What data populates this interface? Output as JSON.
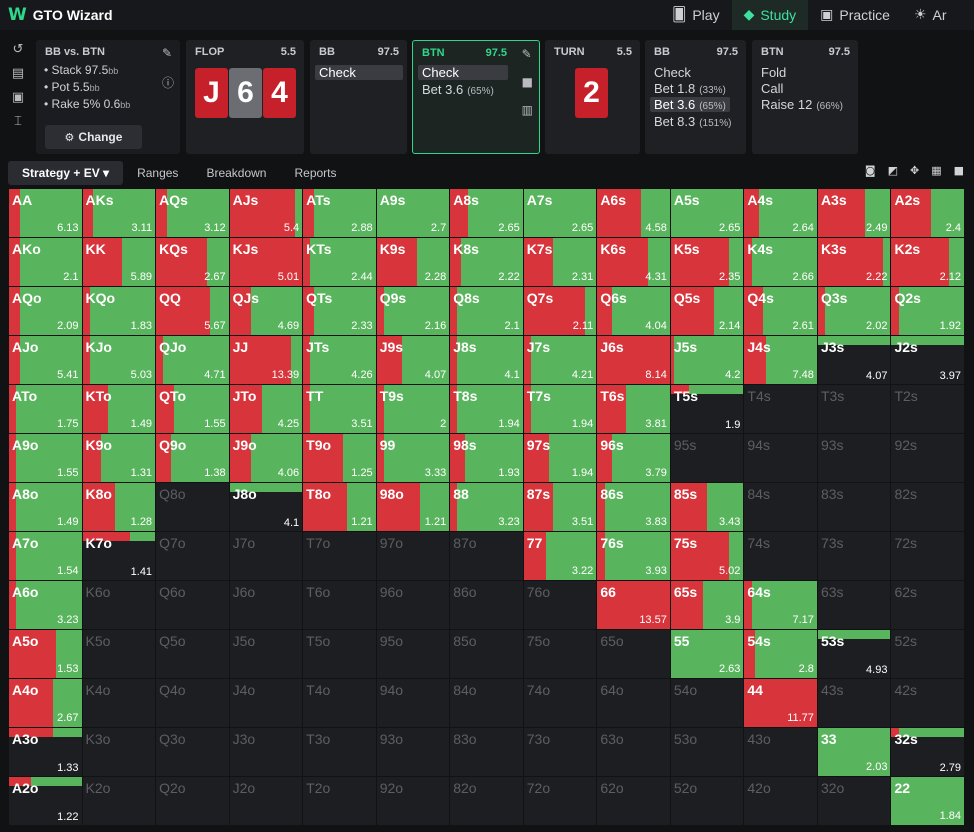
{
  "app": {
    "logo": "W",
    "title": "GTO Wizard"
  },
  "nav": [
    {
      "label": "Play",
      "icon": "play-card-icon"
    },
    {
      "label": "Study",
      "icon": "study-hat-icon"
    },
    {
      "label": "Practice",
      "icon": "gamepad-icon"
    },
    {
      "label": "Ar",
      "icon": "bulb-icon"
    }
  ],
  "info": {
    "title": "BB vs. BTN",
    "stack": "Stack 97.5",
    "pot": "Pot 5.5",
    "rake": "Rake 5% 0.6",
    "unit": "bb",
    "change": "Change"
  },
  "flop": {
    "label": "FLOP",
    "pot": "5.5",
    "cards": [
      "J",
      "6",
      "4"
    ]
  },
  "bb1": {
    "label": "BB",
    "stack": "97.5",
    "options": [
      {
        "text": "Check",
        "pct": ""
      }
    ]
  },
  "btn1": {
    "label": "BTN",
    "stack": "97.5",
    "options": [
      {
        "text": "Check",
        "pct": ""
      },
      {
        "text": "Bet 3.6",
        "pct": "(65%)"
      }
    ]
  },
  "turn": {
    "label": "TURN",
    "pot": "5.5",
    "card": "2"
  },
  "bb2": {
    "label": "BB",
    "stack": "97.5",
    "options": [
      {
        "text": "Check",
        "pct": ""
      },
      {
        "text": "Bet 1.8",
        "pct": "(33%)"
      },
      {
        "text": "Bet 3.6",
        "pct": "(65%)"
      },
      {
        "text": "Bet 8.3",
        "pct": "(151%)"
      }
    ]
  },
  "btn2": {
    "label": "BTN",
    "stack": "97.5",
    "options": [
      {
        "text": "Fold",
        "pct": ""
      },
      {
        "text": "Call",
        "pct": ""
      },
      {
        "text": "Raise 12",
        "pct": "(66%)"
      }
    ]
  },
  "tabs": [
    {
      "label": "Strategy + EV ▾"
    },
    {
      "label": "Ranges"
    },
    {
      "label": "Breakdown"
    },
    {
      "label": "Reports"
    }
  ],
  "colors": {
    "raise": "#d8343b",
    "call": "#59b55d",
    "fold": "#1d1e21"
  },
  "grid": {
    "ranks": [
      "A",
      "K",
      "Q",
      "J",
      "T",
      "9",
      "8",
      "7",
      "6",
      "5",
      "4",
      "3",
      "2"
    ],
    "cells": [
      [
        "AA:0.15:0.85:6.13",
        "AKs:0.15:0.85:3.11",
        "AQs:0.15:0.85:3.12",
        "AJs:0.9:0.1:5.4",
        "ATs:0.15:0.85:2.88",
        "A9s:0:1:2.7",
        "A8s:0.25:0.75:2.65",
        "A7s:0:1:2.65",
        "A6s:0.6:0.4:4.58",
        "A5s:0:1:2.65",
        "A4s:0.2:0.8:2.64",
        "A3s:0.65:0.35:2.49",
        "A2s:0.55:0.45:2.4"
      ],
      [
        "AKo:0.15:0.85:2.1",
        "KK:0.55:0.45:5.89",
        "KQs:0.7:0.3:2.67",
        "KJs:1:0:5.01",
        "KTs:0.1:0.9:2.44",
        "K9s:0.55:0.45:2.28",
        "K8s:0.15:0.85:2.22",
        "K7s:0.4:0.6:2.31",
        "K6s:0.7:0.3:4.31",
        "K5s:0.8:0.2:2.35",
        "K4s:0.1:0.9:2.66",
        "K3s:0.9:0.1:2.22",
        "K2s:0.8:0.2:2.12"
      ],
      [
        "AQo:0.15:0.85:2.09",
        "KQo:0.1:0.9:1.83",
        "QQ:0.75:0.25:5.67",
        "QJs:0.3:0.7:4.69",
        "QTs:0.15:0.85:2.33",
        "Q9s:0.1:0.9:2.16",
        "Q8s:0.1:0.9:2.1",
        "Q7s:0.85:0.15:2.11",
        "Q6s:0.2:0.8:4.04",
        "Q5s:0.6:0.4:2.14",
        "Q4s:0.25:0.75:2.61",
        "Q3s:0.1:0.9:2.02",
        "Q2s:0.1:0.9:1.92"
      ],
      [
        "AJo:0.15:0.85:5.41",
        "KJo:0.1:0.9:5.03",
        "QJo:0.1:0.9:4.71",
        "JJ:0.85:0.15:13.39",
        "JTs:0.1:0.9:4.26",
        "J9s:0.35:0.65:4.07",
        "J8s:0.1:0.9:4.1",
        "J7s:0.1:0.9:4.21",
        "J6s:1:0:8.14",
        "J5s:0.05:0.95:4.2",
        "J4s:0.3:0.7:7.48",
        "J3s:0:1:4.07:thin",
        "J2s:0:1:3.97:thin"
      ],
      [
        "ATo:0.1:0.9:1.75",
        "KTo:0.35:0.65:1.49",
        "QTo:0.25:0.75:1.55",
        "JTo:0.45:0.55:4.25",
        "TT:0.1:0.9:3.51",
        "T9s:0.1:0.9:2",
        "T8s:0.1:0.9:1.94",
        "T7s:0.1:0.9:1.94",
        "T6s:0.4:0.6:3.81",
        "T5s:0.25:0.75:1.9:thin",
        "T4s:0:0::empty",
        "T3s:0:0::empty",
        "T2s:0:0::empty"
      ],
      [
        "A9o:0.1:0.9:1.55",
        "K9o:0.25:0.75:1.31",
        "Q9o:0.2:0.8:1.38",
        "J9o:0.3:0.7:4.06",
        "T9o:0.55:0.45:1.25",
        "99:0.1:0.9:3.33",
        "98s:0.2:0.8:1.93",
        "97s:0.35:0.65:1.94",
        "96s:0.2:0.8:3.79",
        "95s:0:0::empty",
        "94s:0:0::empty",
        "93s:0:0::empty",
        "92s:0:0::empty"
      ],
      [
        "A8o:0.1:0.9:1.49",
        "K8o:0.45:0.55:1.28",
        "Q8o:0:0::empty",
        "J8o:0:1:4.1:thin",
        "T8o:0.6:0.4:1.21",
        "98o:0.6:0.4:1.21",
        "88:0.1:0.9:3.23",
        "87s:0.4:0.6:3.51",
        "86s:0.1:0.9:3.83",
        "85s:0.5:0.5:3.43",
        "84s:0:0::empty",
        "83s:0:0::empty",
        "82s:0:0::empty"
      ],
      [
        "A7o:0.1:0.9:1.54",
        "K7o:0.65:0.35:1.41:thin",
        "Q7o:0:0::empty",
        "J7o:0:0::empty",
        "T7o:0:0::empty",
        "97o:0:0::empty",
        "87o:0:0::empty",
        "77:0.3:0.7:3.22",
        "76s:0.1:0.9:3.93",
        "75s:0.8:0.2:5.02",
        "74s:0:0::empty",
        "73s:0:0::empty",
        "72s:0:0::empty"
      ],
      [
        "A6o:0.1:0.9:3.23",
        "K6o:0:0::empty",
        "Q6o:0:0::empty",
        "J6o:0:0::empty",
        "T6o:0:0::empty",
        "96o:0:0::empty",
        "86o:0:0::empty",
        "76o:0:0::empty",
        "66:1:0:13.57",
        "65s:0.45:0.55:3.9",
        "64s:0.1:0.9:7.17",
        "63s:0:0::empty",
        "62s:0:0::empty"
      ],
      [
        "A5o:0.65:0.35:1.53",
        "K5o:0:0::empty",
        "Q5o:0:0::empty",
        "J5o:0:0::empty",
        "T5o:0:0::empty",
        "95o:0:0::empty",
        "85o:0:0::empty",
        "75o:0:0::empty",
        "65o:0:0::empty",
        "55:0:1:2.63",
        "54s:0.15:0.85:2.8",
        "53s:0:1:4.93:thin",
        "52s:0:0::empty"
      ],
      [
        "A4o:0.6:0.4:2.67",
        "K4o:0:0::empty",
        "Q4o:0:0::empty",
        "J4o:0:0::empty",
        "T4o:0:0::empty",
        "94o:0:0::empty",
        "84o:0:0::empty",
        "74o:0:0::empty",
        "64o:0:0::empty",
        "54o:0:0::empty",
        "44:1:0:11.77",
        "43s:0:0::empty",
        "42s:0:0::empty"
      ],
      [
        "A3o:0.6:0.4:1.33:thin",
        "K3o:0:0::empty",
        "Q3o:0:0::empty",
        "J3o:0:0::empty",
        "T3o:0:0::empty",
        "93o:0:0::empty",
        "83o:0:0::empty",
        "73o:0:0::empty",
        "63o:0:0::empty",
        "53o:0:0::empty",
        "43o:0:0::empty",
        "33:0:1:2.03",
        "32s:0.1:0.9:2.79:thin"
      ],
      [
        "A2o:0.3:0.7:1.22:thin",
        "K2o:0:0::empty",
        "Q2o:0:0::empty",
        "J2o:0:0::empty",
        "T2o:0:0::empty",
        "92o:0:0::empty",
        "82o:0:0::empty",
        "72o:0:0::empty",
        "62o:0:0::empty",
        "52o:0:0::empty",
        "42o:0:0::empty",
        "32o:0:0::empty",
        "22:0:1:1.84"
      ]
    ]
  }
}
